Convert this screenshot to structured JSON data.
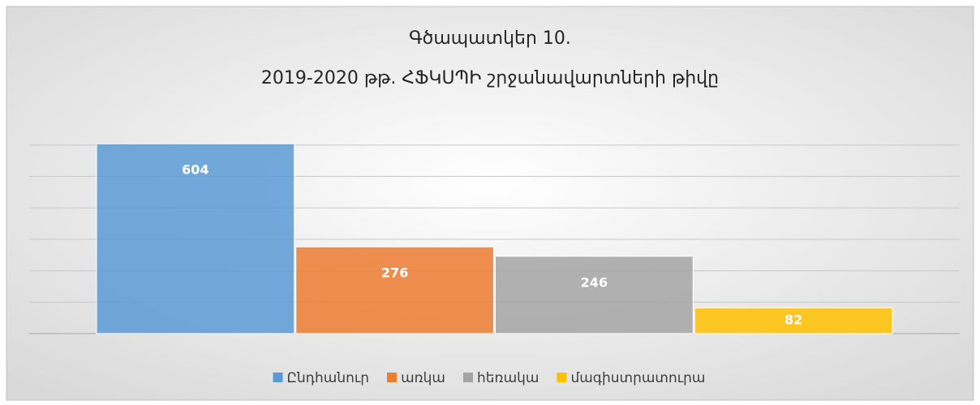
{
  "chart_data": {
    "type": "bar",
    "title": "Գծապատկեր 10.",
    "subtitle": "2019-2020 թթ. ՀՖԿՍՊԻ շրջանավարտների թիվը",
    "series": [
      {
        "name": "Ընդհանուր",
        "color": "#5b9bd5",
        "values": [
          604
        ]
      },
      {
        "name": "առկա",
        "color": "#ed7d31",
        "values": [
          276
        ]
      },
      {
        "name": "հեռակա",
        "color": "#a5a5a5",
        "values": [
          246
        ]
      },
      {
        "name": "մագիստրատուրա",
        "color": "#ffc000",
        "values": [
          82
        ]
      }
    ],
    "ylim": [
      0,
      700
    ],
    "yticks": [
      0,
      100,
      200,
      300,
      400,
      500,
      600
    ],
    "grid": true,
    "legend": "bottom"
  }
}
